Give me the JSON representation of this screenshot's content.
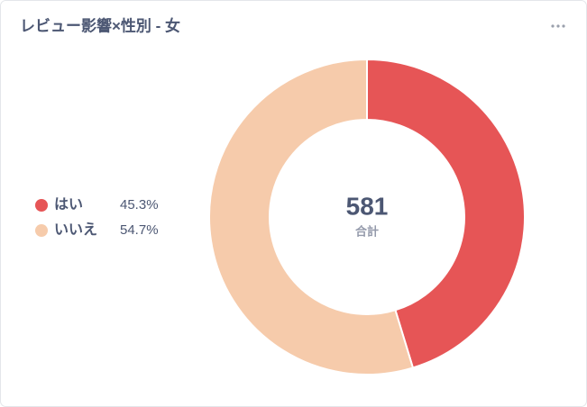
{
  "chart_data": {
    "type": "pie",
    "donut": true,
    "title": "レビュー影響×性別 - 女",
    "categories": [
      "はい",
      "いいえ"
    ],
    "values": [
      45.3,
      54.7
    ],
    "value_labels": [
      "45.3%",
      "54.7%"
    ],
    "colors": [
      "#e65556",
      "#f6cbab"
    ],
    "total": 581,
    "total_label": "合計"
  }
}
